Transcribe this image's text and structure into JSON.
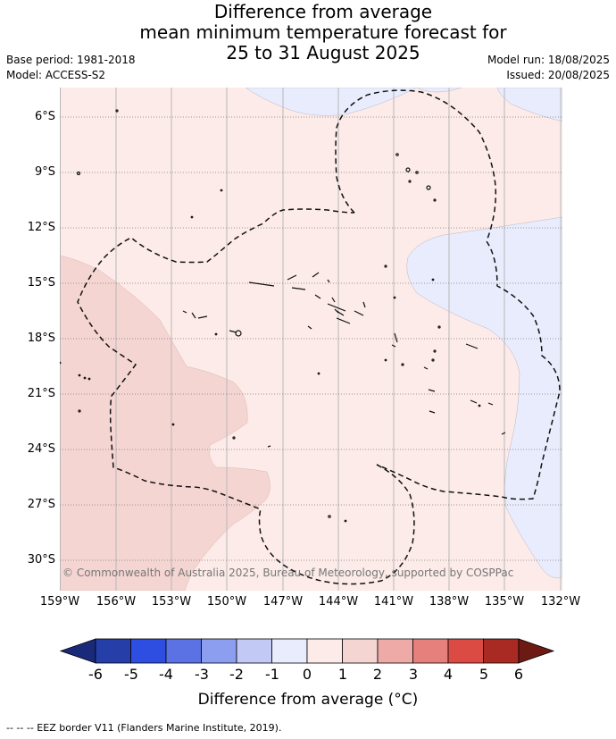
{
  "title": {
    "line1": "Difference from average",
    "line2": "mean minimum temperature forecast for",
    "line3": "25 to 31 August 2025"
  },
  "meta": {
    "base_period": "Base period: 1981-2018",
    "model": "Model: ACCESS-S2",
    "model_run": "Model run: 18/08/2025",
    "issued": "Issued: 20/08/2025"
  },
  "map": {
    "lon_labels": [
      "159°W",
      "156°W",
      "153°W",
      "150°W",
      "147°W",
      "144°W",
      "141°W",
      "138°W",
      "135°W",
      "132°W"
    ],
    "lat_labels": [
      "6°S",
      "9°S",
      "12°S",
      "15°S",
      "18°S",
      "21°S",
      "24°S",
      "27°S",
      "30°S"
    ],
    "copyright": "© Commonwealth of Australia 2025, Bureau of Meteorology, supported by COSPPac",
    "colors": {
      "minus1_0": "#e9ecfc",
      "zero_1": "#fcebe8",
      "one_2": "#f5d5d2"
    }
  },
  "colorbar": {
    "tick_labels": [
      "-6",
      "-5",
      "-4",
      "-3",
      "-2",
      "-1",
      "0",
      "1",
      "2",
      "3",
      "4",
      "5",
      "6"
    ],
    "colors": [
      "#263ea8",
      "#2d4ee0",
      "#5a72e4",
      "#8c9ef0",
      "#c2c9f5",
      "#e9ecfc",
      "#fcebe8",
      "#f5d5d2",
      "#eeaaa6",
      "#e6807c",
      "#db4a43",
      "#a82a22"
    ],
    "under_color": "#1a2a7a",
    "over_color": "#6e1a14",
    "label": "Difference from average (°C)"
  },
  "footnote": "-- -- -- EEZ border V11 (Flanders Marine Institute, 2019)."
}
